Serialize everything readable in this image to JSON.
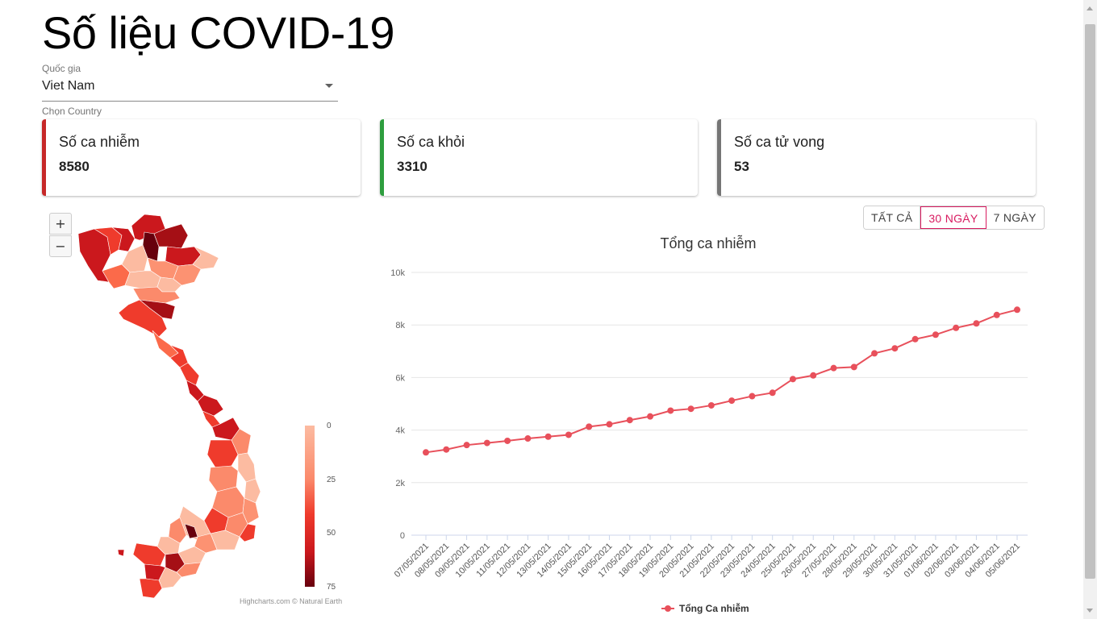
{
  "page": {
    "title": "Số liệu COVID-19"
  },
  "country_select": {
    "label": "Quốc gia",
    "value": "Viet Nam",
    "helper": "Chọn Country"
  },
  "cards": {
    "infected": {
      "label": "Số ca nhiễm",
      "value": "8580"
    },
    "recovered": {
      "label": "Số ca khỏi",
      "value": "3310"
    },
    "deaths": {
      "label": "Số ca tử vong",
      "value": "53"
    }
  },
  "range_buttons": {
    "all": "TẤT CẢ",
    "days30": "30 NGÀY",
    "days7": "7 NGÀY",
    "active": "days30"
  },
  "map": {
    "zoom_in": "+",
    "zoom_out": "−",
    "legend_ticks": [
      "0",
      "25",
      "50",
      "75"
    ],
    "credits": "Highcharts.com © Natural Earth",
    "colors": [
      "#fcbba1",
      "#fb8a6b",
      "#ef3b2c",
      "#cb181d",
      "#67000d"
    ]
  },
  "chart_data": {
    "type": "line",
    "title": "Tổng ca nhiễm",
    "series": [
      {
        "name": "Tổng Ca nhiễm",
        "color": "#e8505b",
        "values": [
          3150,
          3260,
          3430,
          3510,
          3590,
          3680,
          3750,
          3820,
          4130,
          4220,
          4380,
          4520,
          4740,
          4810,
          4940,
          5120,
          5290,
          5420,
          5940,
          6080,
          6360,
          6400,
          6920,
          7110,
          7460,
          7630,
          7890,
          8060,
          8380,
          8580
        ]
      }
    ],
    "x": [
      "07/05/2021",
      "08/05/2021",
      "09/05/2021",
      "10/05/2021",
      "11/05/2021",
      "12/05/2021",
      "13/05/2021",
      "14/05/2021",
      "15/05/2021",
      "16/05/2021",
      "17/05/2021",
      "18/05/2021",
      "19/05/2021",
      "20/05/2021",
      "21/05/2021",
      "22/05/2021",
      "23/05/2021",
      "24/05/2021",
      "25/05/2021",
      "26/05/2021",
      "27/05/2021",
      "28/05/2021",
      "29/05/2021",
      "30/05/2021",
      "31/05/2021",
      "01/06/2021",
      "02/06/2021",
      "03/06/2021",
      "04/06/2021",
      "05/06/2021"
    ],
    "ylim": [
      0,
      10000
    ],
    "yticks": [
      0,
      2000,
      4000,
      6000,
      8000,
      10000
    ],
    "ytick_labels": [
      "0",
      "2k",
      "4k",
      "6k",
      "8k",
      "10k"
    ],
    "grid": true,
    "legend": "bottom-center"
  }
}
